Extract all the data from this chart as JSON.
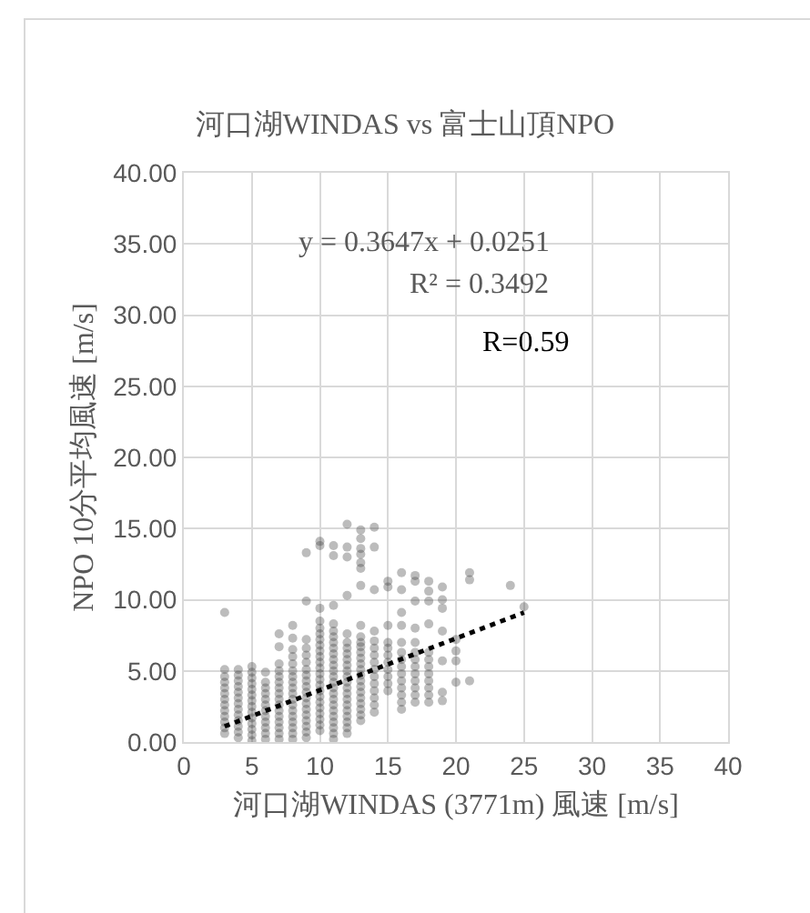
{
  "chart_data": {
    "type": "scatter",
    "title": "河口湖WINDAS vs 富士山頂NPO",
    "xlabel": "河口湖WINDAS (3771m) 風速 [m/s]",
    "ylabel": "NPO 10分平均風速 [m/s]",
    "xlim": [
      0,
      40
    ],
    "xticks": [
      0,
      5,
      10,
      15,
      20,
      25,
      30,
      35,
      40
    ],
    "ylim": [
      0,
      40
    ],
    "yticks": [
      {
        "value": 0,
        "label": "0.00"
      },
      {
        "value": 5,
        "label": "5.00"
      },
      {
        "value": 10,
        "label": "10.00"
      },
      {
        "value": 15,
        "label": "15.00"
      },
      {
        "value": 20,
        "label": "20.00"
      },
      {
        "value": 25,
        "label": "25.00"
      },
      {
        "value": 30,
        "label": "30.00"
      },
      {
        "value": 35,
        "label": "35.00"
      },
      {
        "value": 40,
        "label": "40.00"
      }
    ],
    "grid": true,
    "marker": "circle",
    "annotations": [
      "y = 0.3647x + 0.0251",
      "R² = 0.3492",
      "R=0.59"
    ],
    "series": [
      {
        "color": "#404040",
        "x": [
          3,
          3,
          3,
          3,
          3,
          3,
          3,
          3,
          3,
          3,
          3,
          3,
          3,
          4,
          4,
          4,
          4,
          4,
          4,
          4,
          4,
          4,
          4,
          4,
          4,
          4,
          5,
          5,
          5,
          5,
          5,
          5,
          5,
          5,
          5,
          5,
          5,
          5,
          5,
          5,
          6,
          6,
          6,
          6,
          6,
          6,
          6,
          6,
          6,
          6,
          6,
          6,
          7,
          7,
          7,
          7,
          7,
          7,
          7,
          7,
          7,
          7,
          7,
          7,
          7,
          7,
          7,
          7,
          8,
          8,
          8,
          8,
          8,
          8,
          8,
          8,
          8,
          8,
          8,
          8,
          8,
          8,
          8,
          8,
          8,
          8,
          9,
          9,
          9,
          9,
          9,
          9,
          9,
          9,
          9,
          9,
          9,
          9,
          9,
          9,
          9,
          9,
          9,
          9,
          9,
          10,
          10,
          10,
          10,
          10,
          10,
          10,
          10,
          10,
          10,
          10,
          10,
          10,
          10,
          10,
          10,
          10,
          10,
          10,
          10,
          10,
          10,
          10,
          11,
          11,
          11,
          11,
          11,
          11,
          11,
          11,
          11,
          11,
          11,
          11,
          11,
          11,
          11,
          11,
          11,
          11,
          11,
          11,
          11,
          11,
          11,
          11,
          12,
          12,
          12,
          12,
          12,
          12,
          12,
          12,
          12,
          12,
          12,
          12,
          12,
          12,
          12,
          12,
          12,
          12,
          12,
          12,
          12,
          12,
          13,
          13,
          13,
          13,
          13,
          13,
          13,
          13,
          13,
          13,
          13,
          13,
          13,
          13,
          13,
          13,
          13,
          13,
          13,
          13,
          13,
          13,
          13,
          13,
          14,
          14,
          14,
          14,
          14,
          14,
          14,
          14,
          14,
          14,
          14,
          14,
          14,
          14,
          14,
          15,
          15,
          15,
          15,
          15,
          15,
          15,
          15,
          15,
          15,
          15,
          16,
          16,
          16,
          16,
          16,
          16,
          16,
          16,
          16,
          16,
          16,
          16,
          16,
          16,
          17,
          17,
          17,
          17,
          17,
          17,
          17,
          17,
          17,
          17,
          17,
          17,
          17,
          18,
          18,
          18,
          18,
          18,
          18,
          18,
          18,
          18,
          18,
          18,
          18,
          19,
          19,
          19,
          19,
          19,
          19,
          19,
          20,
          20,
          20,
          20,
          21,
          21,
          21,
          24,
          25
        ],
        "values": [
          0.6,
          1.0,
          1.4,
          1.8,
          2.2,
          2.6,
          3.0,
          3.4,
          3.8,
          4.2,
          4.6,
          5.1,
          9.1,
          0.3,
          0.7,
          1.1,
          1.5,
          1.9,
          2.3,
          2.7,
          3.1,
          3.5,
          3.9,
          4.3,
          4.7,
          5.1,
          0.1,
          0.5,
          0.9,
          1.3,
          1.7,
          2.1,
          2.5,
          2.9,
          3.3,
          3.7,
          4.1,
          4.5,
          4.9,
          5.3,
          0.2,
          0.6,
          1.0,
          1.4,
          1.8,
          2.2,
          2.6,
          3.0,
          3.4,
          3.8,
          4.2,
          4.9,
          0.2,
          0.6,
          1.0,
          1.4,
          1.8,
          2.2,
          2.6,
          3.0,
          3.4,
          3.8,
          4.2,
          4.6,
          5.0,
          5.5,
          6.7,
          7.6,
          0.2,
          0.6,
          1.0,
          1.4,
          1.8,
          2.2,
          2.6,
          3.0,
          3.4,
          3.8,
          4.2,
          4.6,
          5.0,
          5.5,
          6.0,
          6.5,
          7.3,
          8.2,
          0.3,
          0.7,
          1.1,
          1.5,
          1.9,
          2.3,
          2.7,
          3.1,
          3.5,
          3.9,
          4.3,
          4.7,
          5.1,
          5.6,
          6.1,
          6.6,
          7.2,
          9.9,
          13.3,
          0.8,
          1.2,
          1.6,
          2.0,
          2.4,
          2.8,
          3.2,
          3.6,
          4.0,
          4.4,
          4.8,
          5.2,
          5.6,
          6.0,
          6.4,
          6.8,
          7.2,
          7.6,
          8.0,
          8.5,
          9.4,
          13.8,
          14.1,
          0.2,
          0.6,
          1.0,
          1.4,
          1.8,
          2.2,
          2.6,
          3.0,
          3.4,
          3.8,
          4.2,
          4.6,
          5.0,
          5.4,
          5.8,
          6.2,
          6.6,
          7.0,
          7.4,
          7.8,
          8.3,
          9.6,
          13.1,
          13.8,
          0.6,
          1.0,
          1.4,
          1.8,
          2.2,
          2.6,
          3.0,
          3.4,
          3.8,
          4.2,
          4.6,
          5.0,
          5.4,
          5.8,
          6.2,
          6.6,
          7.0,
          7.6,
          10.3,
          13.0,
          13.7,
          15.3,
          1.5,
          1.9,
          2.3,
          2.7,
          3.1,
          3.5,
          3.9,
          4.3,
          4.7,
          5.1,
          5.5,
          5.9,
          6.3,
          6.7,
          7.0,
          7.4,
          8.2,
          11.0,
          12.2,
          12.6,
          13.2,
          13.6,
          14.3,
          14.9,
          2.1,
          2.6,
          3.1,
          3.6,
          4.1,
          4.6,
          5.1,
          5.6,
          6.1,
          6.6,
          7.1,
          7.8,
          10.7,
          13.7,
          15.1,
          3.6,
          4.1,
          4.6,
          5.1,
          5.6,
          6.1,
          6.6,
          7.0,
          8.2,
          10.9,
          11.3,
          2.3,
          2.8,
          3.3,
          3.8,
          4.3,
          4.8,
          5.3,
          5.8,
          6.3,
          7.0,
          8.2,
          9.1,
          10.7,
          11.9,
          2.8,
          3.3,
          3.8,
          4.3,
          4.8,
          5.3,
          5.8,
          6.3,
          7.0,
          8.0,
          9.9,
          11.3,
          11.7,
          2.8,
          3.3,
          3.8,
          4.3,
          4.8,
          5.3,
          5.8,
          6.3,
          8.3,
          9.9,
          10.6,
          11.3,
          2.9,
          3.5,
          5.7,
          7.8,
          9.4,
          10.0,
          10.9,
          4.2,
          5.7,
          6.4,
          7.2,
          4.3,
          11.4,
          11.9,
          11.0,
          9.5
        ]
      },
      {
        "type": "line",
        "color": "#000000",
        "x": [
          3,
          25
        ],
        "values": [
          1.1,
          9.1
        ],
        "line_style": "dotted",
        "marker": "none"
      }
    ]
  }
}
